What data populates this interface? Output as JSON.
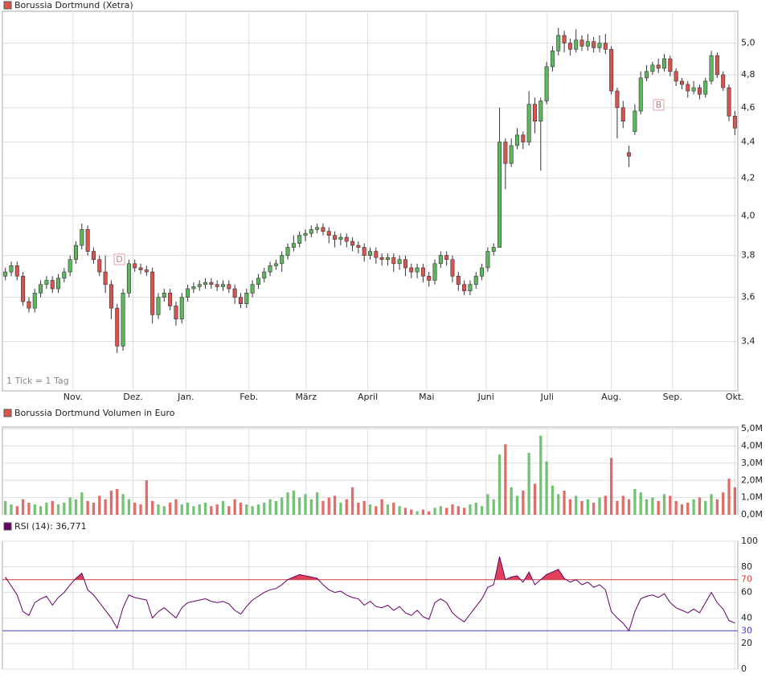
{
  "chart_data": [
    {
      "type": "candlestick",
      "title": "Borussia Dortmund (Xetra)",
      "note": "1 Tick = 1 Tag",
      "annotations": [
        "D",
        "B"
      ],
      "log": true,
      "grid": true,
      "up_color": "#5cb85c",
      "down_color": "#d9534f",
      "xlim": [
        -0.5,
        124.5
      ],
      "xticks": [
        {
          "value": 11.5,
          "label": "Nov."
        },
        {
          "value": 21.7,
          "label": "Dez."
        },
        {
          "value": 30.7,
          "label": "Jan."
        },
        {
          "value": 41.4,
          "label": "Feb."
        },
        {
          "value": 51.1,
          "label": "März"
        },
        {
          "value": 61.6,
          "label": "April"
        },
        {
          "value": 71.6,
          "label": "Mai"
        },
        {
          "value": 81.7,
          "label": "Juni"
        },
        {
          "value": 92.1,
          "label": "Juli"
        },
        {
          "value": 103,
          "label": "Aug."
        },
        {
          "value": 113.4,
          "label": "Sep."
        },
        {
          "value": 124,
          "label": "Okt."
        }
      ],
      "ylim": [
        3.19,
        5.21
      ],
      "yticks": [
        {
          "value": 3.4,
          "label": "3,4"
        },
        {
          "value": 3.6,
          "label": "3,6"
        },
        {
          "value": 3.8,
          "label": "3,8"
        },
        {
          "value": 4.0,
          "label": "4,0"
        },
        {
          "value": 4.2,
          "label": "4,2"
        },
        {
          "value": 4.4,
          "label": "4,4"
        },
        {
          "value": 4.6,
          "label": "4,6"
        },
        {
          "value": 4.8,
          "label": "4,8"
        },
        {
          "value": 5.0,
          "label": "5,0"
        }
      ],
      "open": [
        3.7,
        3.72,
        3.75,
        3.7,
        3.58,
        3.55,
        3.62,
        3.66,
        3.68,
        3.64,
        3.69,
        3.72,
        3.78,
        3.85,
        3.93,
        3.82,
        3.78,
        3.72,
        3.66,
        3.55,
        3.38,
        3.62,
        3.76,
        3.74,
        3.73,
        3.72,
        3.52,
        3.6,
        3.62,
        3.56,
        3.5,
        3.6,
        3.64,
        3.65,
        3.66,
        3.67,
        3.66,
        3.65,
        3.66,
        3.64,
        3.6,
        3.57,
        3.62,
        3.66,
        3.69,
        3.72,
        3.75,
        3.76,
        3.8,
        3.84,
        3.86,
        3.9,
        3.91,
        3.93,
        3.94,
        3.92,
        3.9,
        3.88,
        3.89,
        3.87,
        3.85,
        3.84,
        3.8,
        3.82,
        3.79,
        3.78,
        3.79,
        3.76,
        3.78,
        3.74,
        3.72,
        3.74,
        3.7,
        3.68,
        3.76,
        3.8,
        3.78,
        3.7,
        3.66,
        3.63,
        3.66,
        3.7,
        3.74,
        3.82,
        3.84,
        4.4,
        4.28,
        4.38,
        4.44,
        4.4,
        4.62,
        4.52,
        4.64,
        4.85,
        4.95,
        5.05,
        5.0,
        4.96,
        5.02,
        4.98,
        5.01,
        4.97,
        5.0,
        4.96,
        4.7,
        4.6,
        4.34,
        4.46,
        4.58,
        4.78,
        4.82,
        4.86,
        4.84,
        4.9,
        4.82,
        4.76,
        4.74,
        4.7,
        4.72,
        4.68,
        4.76,
        4.92,
        4.8,
        4.72,
        4.55
      ],
      "high": [
        3.74,
        3.77,
        3.77,
        3.72,
        3.6,
        3.64,
        3.68,
        3.7,
        3.7,
        3.71,
        3.74,
        3.8,
        3.87,
        3.96,
        3.95,
        3.84,
        3.8,
        3.8,
        3.68,
        3.57,
        3.64,
        3.78,
        3.78,
        3.76,
        3.75,
        3.74,
        3.62,
        3.64,
        3.64,
        3.58,
        3.62,
        3.66,
        3.67,
        3.68,
        3.69,
        3.69,
        3.68,
        3.68,
        3.68,
        3.66,
        3.62,
        3.64,
        3.68,
        3.71,
        3.74,
        3.77,
        3.78,
        3.82,
        3.86,
        3.9,
        3.92,
        3.93,
        3.95,
        3.96,
        3.96,
        3.94,
        3.92,
        3.91,
        3.91,
        3.89,
        3.87,
        3.86,
        3.84,
        3.84,
        3.81,
        3.81,
        3.81,
        3.8,
        3.8,
        3.76,
        3.76,
        3.76,
        3.72,
        3.78,
        3.82,
        3.82,
        3.8,
        3.72,
        3.68,
        3.68,
        3.72,
        3.76,
        3.84,
        3.86,
        4.6,
        4.42,
        4.42,
        4.48,
        4.46,
        4.7,
        4.66,
        4.66,
        4.88,
        4.98,
        5.1,
        5.08,
        5.03,
        5.09,
        5.05,
        5.06,
        5.04,
        5.05,
        5.06,
        4.98,
        4.72,
        4.64,
        4.38,
        4.62,
        4.82,
        4.86,
        4.88,
        4.9,
        4.93,
        4.92,
        4.84,
        4.78,
        4.76,
        4.76,
        4.74,
        4.78,
        4.95,
        4.94,
        4.82,
        4.74,
        4.58
      ],
      "low": [
        3.68,
        3.7,
        3.68,
        3.56,
        3.53,
        3.53,
        3.6,
        3.64,
        3.62,
        3.62,
        3.67,
        3.7,
        3.76,
        3.83,
        3.8,
        3.76,
        3.7,
        3.62,
        3.5,
        3.35,
        3.36,
        3.6,
        3.72,
        3.71,
        3.7,
        3.48,
        3.5,
        3.58,
        3.54,
        3.47,
        3.48,
        3.58,
        3.62,
        3.63,
        3.64,
        3.64,
        3.63,
        3.63,
        3.62,
        3.57,
        3.55,
        3.55,
        3.6,
        3.64,
        3.67,
        3.7,
        3.73,
        3.72,
        3.78,
        3.82,
        3.84,
        3.87,
        3.89,
        3.91,
        3.9,
        3.86,
        3.84,
        3.85,
        3.84,
        3.82,
        3.81,
        3.77,
        3.78,
        3.76,
        3.75,
        3.75,
        3.72,
        3.73,
        3.7,
        3.69,
        3.69,
        3.67,
        3.65,
        3.66,
        3.74,
        3.75,
        3.67,
        3.63,
        3.61,
        3.61,
        3.64,
        3.68,
        3.72,
        3.8,
        3.84,
        4.14,
        4.26,
        4.36,
        4.36,
        4.38,
        4.45,
        4.24,
        4.62,
        4.82,
        4.92,
        4.94,
        4.92,
        4.94,
        4.95,
        4.95,
        4.94,
        4.94,
        4.93,
        4.68,
        4.42,
        4.48,
        4.26,
        4.44,
        4.56,
        4.76,
        4.8,
        4.81,
        4.82,
        4.79,
        4.73,
        4.71,
        4.66,
        4.68,
        4.65,
        4.66,
        4.74,
        4.78,
        4.7,
        4.52,
        4.44
      ],
      "close": [
        3.72,
        3.75,
        3.7,
        3.58,
        3.55,
        3.62,
        3.66,
        3.68,
        3.64,
        3.69,
        3.72,
        3.78,
        3.85,
        3.93,
        3.82,
        3.78,
        3.72,
        3.66,
        3.55,
        3.38,
        3.62,
        3.76,
        3.74,
        3.73,
        3.72,
        3.52,
        3.6,
        3.62,
        3.56,
        3.5,
        3.6,
        3.64,
        3.65,
        3.66,
        3.67,
        3.66,
        3.65,
        3.66,
        3.64,
        3.6,
        3.57,
        3.62,
        3.66,
        3.69,
        3.72,
        3.75,
        3.76,
        3.8,
        3.84,
        3.86,
        3.9,
        3.91,
        3.93,
        3.94,
        3.92,
        3.9,
        3.88,
        3.89,
        3.87,
        3.85,
        3.84,
        3.8,
        3.82,
        3.79,
        3.78,
        3.79,
        3.76,
        3.78,
        3.74,
        3.72,
        3.74,
        3.7,
        3.68,
        3.76,
        3.8,
        3.78,
        3.7,
        3.66,
        3.63,
        3.66,
        3.7,
        3.74,
        3.82,
        3.84,
        4.4,
        4.28,
        4.38,
        4.44,
        4.4,
        4.62,
        4.52,
        4.64,
        4.85,
        4.95,
        5.05,
        5.0,
        4.96,
        5.02,
        4.98,
        5.01,
        4.97,
        5.0,
        4.96,
        4.7,
        4.6,
        4.52,
        4.32,
        4.58,
        4.78,
        4.82,
        4.86,
        4.84,
        4.9,
        4.82,
        4.76,
        4.74,
        4.7,
        4.72,
        4.68,
        4.76,
        4.92,
        4.8,
        4.72,
        4.55,
        4.48
      ]
    },
    {
      "type": "bar",
      "title": "Borussia Dortmund Volumen in Euro",
      "grid": true,
      "ylim": [
        0,
        5.1
      ],
      "yticks": [
        {
          "value": 0,
          "label": "0,0M"
        },
        {
          "value": 1,
          "label": "1,0M"
        },
        {
          "value": 2,
          "label": "2,0M"
        },
        {
          "value": 3,
          "label": "3,0M"
        },
        {
          "value": 4,
          "label": "4,0M"
        },
        {
          "value": 5,
          "label": "5,0M"
        }
      ],
      "values": [
        0.8,
        0.6,
        0.5,
        0.9,
        0.7,
        0.6,
        0.5,
        0.7,
        0.8,
        0.6,
        0.7,
        1.0,
        0.9,
        1.3,
        0.8,
        0.7,
        1.1,
        0.9,
        1.4,
        1.5,
        1.2,
        0.9,
        0.7,
        0.6,
        2.0,
        0.8,
        0.6,
        0.5,
        0.7,
        0.9,
        0.6,
        0.7,
        0.5,
        0.6,
        0.7,
        0.5,
        0.6,
        0.8,
        0.5,
        0.9,
        0.7,
        0.6,
        0.5,
        0.6,
        0.7,
        0.9,
        0.8,
        1.0,
        1.3,
        1.4,
        1.0,
        1.2,
        0.9,
        1.3,
        0.8,
        1.0,
        1.1,
        0.7,
        0.9,
        1.6,
        0.7,
        0.8,
        0.6,
        0.5,
        0.9,
        0.6,
        0.7,
        0.5,
        0.4,
        0.3,
        0.2,
        0.3,
        0.2,
        0.4,
        0.5,
        0.4,
        0.6,
        0.5,
        0.4,
        0.6,
        0.7,
        0.5,
        1.2,
        0.9,
        3.5,
        4.1,
        1.6,
        1.1,
        1.4,
        3.6,
        1.8,
        4.6,
        3.1,
        1.7,
        1.2,
        1.4,
        0.9,
        1.1,
        0.8,
        0.9,
        0.7,
        1.0,
        1.1,
        3.3,
        0.8,
        1.1,
        0.9,
        1.5,
        1.3,
        0.9,
        1.0,
        0.8,
        1.2,
        1.1,
        0.8,
        0.6,
        0.7,
        0.9,
        1.0,
        0.8,
        1.2,
        0.9,
        1.3,
        2.1,
        1.6
      ]
    },
    {
      "type": "line",
      "title": "RSI (14): 36,771",
      "color": "#660066",
      "overbought_color": "#e0405a",
      "grid": true,
      "ylim": [
        0,
        100
      ],
      "yticks": [
        0,
        20,
        40,
        60,
        80,
        100
      ],
      "levels": [
        {
          "value": 70,
          "color": "#d04040"
        },
        {
          "value": 30,
          "color": "#4040c0"
        }
      ],
      "values": [
        72,
        65,
        58,
        45,
        42,
        52,
        55,
        57,
        50,
        56,
        60,
        66,
        71,
        75,
        62,
        58,
        52,
        46,
        40,
        32,
        48,
        58,
        56,
        55,
        54,
        40,
        45,
        48,
        44,
        40,
        48,
        52,
        53,
        54,
        55,
        53,
        52,
        53,
        51,
        46,
        43,
        49,
        54,
        57,
        60,
        62,
        63,
        66,
        70,
        72,
        74,
        73,
        72,
        71,
        66,
        62,
        60,
        61,
        58,
        56,
        55,
        50,
        53,
        49,
        48,
        50,
        46,
        49,
        44,
        42,
        46,
        41,
        39,
        52,
        55,
        52,
        44,
        40,
        37,
        43,
        49,
        55,
        64,
        66,
        88,
        70,
        72,
        73,
        68,
        76,
        66,
        70,
        74,
        76,
        78,
        71,
        68,
        70,
        66,
        68,
        64,
        66,
        62,
        45,
        40,
        36,
        30,
        45,
        55,
        57,
        58,
        56,
        59,
        52,
        48,
        46,
        44,
        47,
        44,
        52,
        60,
        52,
        47,
        38,
        36
      ]
    }
  ]
}
